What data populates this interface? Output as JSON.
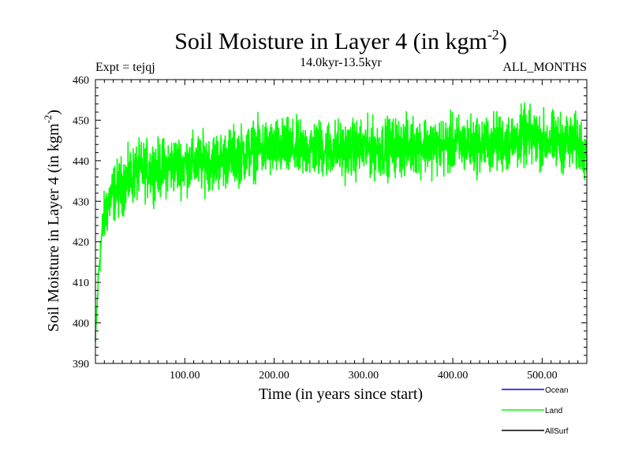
{
  "chart_data": {
    "type": "line",
    "title": "Soil Moisture in Layer 4 (in kgm",
    "title_sup": "-2",
    "title_close": ")",
    "left_label": "Expt = tejqj",
    "subtitle": "14.0kyr-13.5kyr",
    "right_label": "ALL_MONTHS",
    "xlabel": "Time (in years since start)",
    "ylabel": "Soil Moisture in Layer 4 (in kgm",
    "ylabel_sup": "-2",
    "ylabel_close": ")",
    "xlim": [
      0,
      550
    ],
    "ylim": [
      390,
      460
    ],
    "xticks": [
      100,
      200,
      300,
      400,
      500
    ],
    "xtick_labels": [
      "100.00",
      "200.00",
      "300.00",
      "400.00",
      "500.00"
    ],
    "yticks": [
      390,
      400,
      410,
      420,
      430,
      440,
      450,
      460
    ],
    "ytick_labels": [
      "390",
      "400",
      "410",
      "420",
      "430",
      "440",
      "450",
      "460"
    ],
    "legend": [
      {
        "name": "Ocean",
        "color": "#0000ff"
      },
      {
        "name": "Land",
        "color": "#00ff00"
      },
      {
        "name": "AllSurf",
        "color": "#000000"
      }
    ],
    "series": [
      {
        "name": "Land",
        "color": "#00ff00",
        "x": [
          0,
          2,
          4,
          6,
          8,
          10,
          12,
          15,
          20,
          25,
          30,
          35,
          40,
          45,
          50,
          55,
          60,
          70,
          80,
          90,
          100,
          110,
          120,
          130,
          140,
          150,
          160,
          170,
          180,
          190,
          200,
          210,
          220,
          230,
          240,
          250,
          260,
          270,
          280,
          290,
          300,
          310,
          320,
          330,
          340,
          350,
          360,
          370,
          380,
          390,
          400,
          410,
          420,
          430,
          440,
          450,
          460,
          470,
          480,
          490,
          500,
          510,
          520,
          530,
          540,
          550
        ],
        "values": [
          395,
          405,
          414,
          419,
          423,
          426,
          428,
          430,
          432,
          433,
          434,
          435,
          436,
          437,
          437.5,
          437.5,
          438,
          438,
          438.5,
          439,
          439,
          439.5,
          439.5,
          440,
          440,
          441,
          441.5,
          442,
          443,
          443,
          443,
          443,
          443,
          442.5,
          443,
          443,
          443,
          443,
          442.5,
          443,
          443,
          443,
          443,
          443.5,
          443.5,
          443.5,
          444,
          444,
          443.5,
          443.5,
          444,
          444,
          444,
          444,
          444,
          444.5,
          444.5,
          445,
          446,
          445.5,
          445,
          445,
          444.5,
          444.5,
          444,
          443.5
        ],
        "noise_amplitude": 6
      }
    ]
  }
}
